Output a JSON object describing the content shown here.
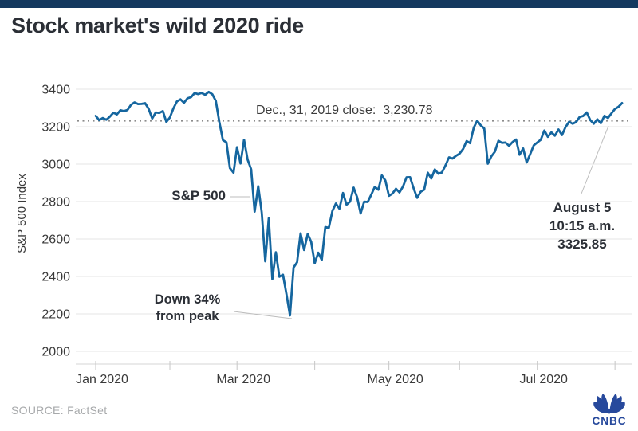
{
  "page": {
    "stripe_color": "#14395f"
  },
  "header": {
    "title": "Stock market's wild 2020 ride"
  },
  "chart": {
    "y_axis_title": "S&P 500 Index",
    "reference_label": "Dec., 31, 2019 close:  3,230.78",
    "annotations": {
      "series_label": "S&P 500",
      "trough_line1": "Down 34%",
      "trough_line2": "from peak",
      "latest_line1": "August 5",
      "latest_line2": "10:15 a.m.",
      "latest_line3": "3325.85"
    }
  },
  "chart_data": {
    "type": "line",
    "title": "Stock market's wild 2020 ride",
    "xlabel": "",
    "ylabel": "S&P 500 Index",
    "ylim": [
      2000,
      3400
    ],
    "grid": true,
    "legend": false,
    "series_name": "S&P 500",
    "x_unit": "trading days, Jan 2 2020 through Aug 5 2020 (10:15 a.m.)",
    "x_start_label": "Jan 2, 2020",
    "x_end_label": "Aug 5, 2020 10:15 a.m.",
    "y_ticks": [
      3400,
      3200,
      3000,
      2800,
      2600,
      2400,
      2200,
      2000
    ],
    "x_ticks": [
      {
        "day": 0,
        "label": "Jan 2020"
      },
      {
        "day": 21,
        "label": ""
      },
      {
        "day": 40,
        "label": "Mar 2020"
      },
      {
        "day": 62,
        "label": ""
      },
      {
        "day": 83,
        "label": "May 2020"
      },
      {
        "day": 103,
        "label": ""
      },
      {
        "day": 125,
        "label": "Jul 2020"
      },
      {
        "day": 147,
        "label": ""
      }
    ],
    "reference_line": {
      "label": "Dec., 31, 2019 close",
      "value": 3230.78
    },
    "last_point": {
      "label": "August 5 10:15 a.m.",
      "value": 3325.85
    },
    "trough_point": {
      "label": "Down 34% from peak",
      "value": 2191.86
    },
    "values": [
      3257.85,
      3234.85,
      3246.28,
      3237.18,
      3253.05,
      3274.7,
      3265.35,
      3288.13,
      3283.15,
      3289.29,
      3316.81,
      3329.62,
      3320.79,
      3321.75,
      3325.54,
      3295.47,
      3243.63,
      3276.24,
      3273.4,
      3283.66,
      3225.52,
      3248.92,
      3297.59,
      3334.69,
      3345.78,
      3327.71,
      3352.09,
      3357.75,
      3379.45,
      3373.94,
      3380.16,
      3370.29,
      3386.15,
      3373.23,
      3337.75,
      3225.89,
      3128.21,
      3116.39,
      2978.76,
      2954.22,
      3090.23,
      3003.37,
      3130.12,
      3023.94,
      2972.37,
      2746.56,
      2882.23,
      2741.38,
      2480.64,
      2711.02,
      2386.13,
      2529.19,
      2398.1,
      2409.39,
      2304.92,
      2191.86,
      2447.33,
      2475.56,
      2630.07,
      2541.47,
      2626.65,
      2584.59,
      2470.5,
      2526.9,
      2488.65,
      2663.68,
      2659.41,
      2749.98,
      2789.82,
      2761.63,
      2846.06,
      2783.36,
      2799.55,
      2874.56,
      2823.16,
      2736.56,
      2799.31,
      2797.8,
      2836.74,
      2878.48,
      2863.39,
      2939.51,
      2912.43,
      2830.71,
      2842.74,
      2868.44,
      2848.42,
      2881.19,
      2929.8,
      2930.32,
      2870.12,
      2820.0,
      2852.5,
      2863.7,
      2953.91,
      2922.94,
      2971.61,
      2948.51,
      2955.45,
      2991.77,
      3036.13,
      3029.73,
      3044.31,
      3055.73,
      3080.82,
      3122.87,
      3112.35,
      3193.93,
      3232.39,
      3207.18,
      3190.14,
      3002.1,
      3041.31,
      3066.59,
      3124.74,
      3113.49,
      3115.34,
      3097.74,
      3117.86,
      3131.29,
      3050.33,
      3083.76,
      3009.05,
      3053.24,
      3100.29,
      3115.86,
      3130.01,
      3179.72,
      3145.32,
      3169.94,
      3152.05,
      3185.04,
      3155.22,
      3197.52,
      3226.56,
      3215.57,
      3224.73,
      3251.84,
      3257.3,
      3276.02,
      3235.66,
      3215.63,
      3239.41,
      3218.44,
      3258.44,
      3246.22,
      3271.12,
      3294.61,
      3306.51,
      3325.85
    ]
  },
  "footer": {
    "source": "SOURCE: FactSet",
    "logo_text": "CNBC"
  },
  "colors": {
    "line": "#15669f",
    "grid": "#e4e4e4",
    "axis": "#d6d6d6",
    "tick": "#c6c6c6",
    "dotted": "#8c8c8c",
    "axis_text": "#3a3a3a",
    "callout": "#bcbcbc",
    "logo": "#27499c"
  }
}
